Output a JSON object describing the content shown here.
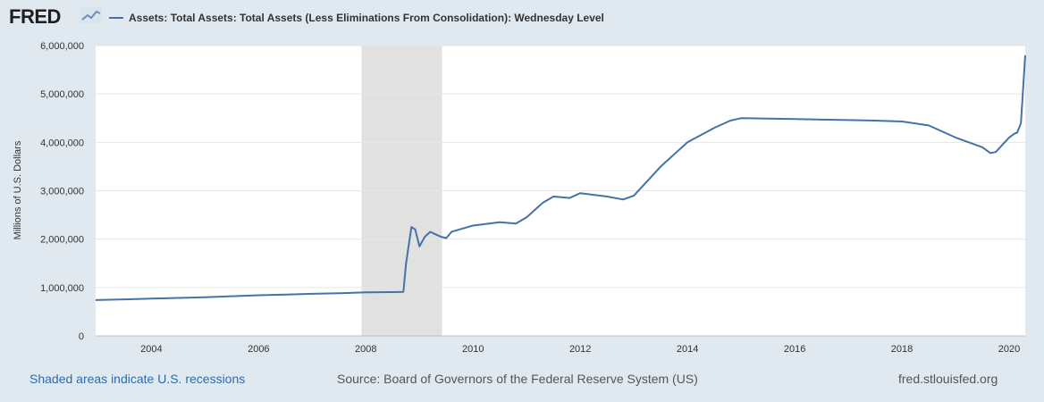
{
  "header": {
    "logo_text": "FRED",
    "series_title": "Assets: Total Assets: Total Assets (Less Eliminations From Consolidation): Wednesday Level",
    "series_color": "#4572a7"
  },
  "footer": {
    "recession_note": "Shaded areas indicate U.S. recessions",
    "source": "Source: Board of Governors of the Federal Reserve System (US)",
    "site": "fred.stlouisfed.org"
  },
  "chart_data": {
    "type": "line",
    "title": "Assets: Total Assets: Total Assets (Less Eliminations From Consolidation): Wednesday Level",
    "xlabel": "",
    "ylabel": "Millions of U.S. Dollars",
    "xlim": [
      2002.96,
      2020.3
    ],
    "ylim": [
      0,
      6000000
    ],
    "yticks": [
      0,
      1000000,
      2000000,
      3000000,
      4000000,
      5000000,
      6000000
    ],
    "ytick_labels": [
      "0",
      "1,000,000",
      "2,000,000",
      "3,000,000",
      "4,000,000",
      "5,000,000",
      "6,000,000"
    ],
    "xticks": [
      2004,
      2006,
      2008,
      2010,
      2012,
      2014,
      2016,
      2018,
      2020
    ],
    "xtick_labels": [
      "2004",
      "2006",
      "2008",
      "2010",
      "2012",
      "2014",
      "2016",
      "2018",
      "2020"
    ],
    "grid": true,
    "recessions": [
      [
        2007.92,
        2009.42
      ]
    ],
    "series": [
      {
        "name": "Assets: Total Assets: Total Assets (Less Eliminations From Consolidation): Wednesday Level",
        "color": "#4572a7",
        "x": [
          2002.96,
          2003.5,
          2004.0,
          2004.5,
          2005.0,
          2005.5,
          2006.0,
          2006.5,
          2007.0,
          2007.5,
          2008.0,
          2008.5,
          2008.7,
          2008.75,
          2008.85,
          2008.92,
          2009.0,
          2009.1,
          2009.2,
          2009.3,
          2009.4,
          2009.5,
          2009.6,
          2009.75,
          2010.0,
          2010.5,
          2010.8,
          2011.0,
          2011.3,
          2011.5,
          2011.8,
          2012.0,
          2012.5,
          2012.8,
          2013.0,
          2013.5,
          2014.0,
          2014.5,
          2014.8,
          2015.0,
          2015.5,
          2016.0,
          2016.5,
          2017.0,
          2017.5,
          2018.0,
          2018.5,
          2019.0,
          2019.5,
          2019.65,
          2019.75,
          2020.0,
          2020.1,
          2020.15,
          2020.22,
          2020.3
        ],
        "values": [
          740000,
          755000,
          770000,
          785000,
          800000,
          820000,
          840000,
          855000,
          870000,
          880000,
          900000,
          905000,
          910000,
          1500000,
          2250000,
          2200000,
          1850000,
          2050000,
          2150000,
          2100000,
          2050000,
          2020000,
          2150000,
          2200000,
          2280000,
          2350000,
          2320000,
          2450000,
          2750000,
          2880000,
          2850000,
          2950000,
          2880000,
          2820000,
          2900000,
          3500000,
          4000000,
          4300000,
          4450000,
          4500000,
          4490000,
          4480000,
          4470000,
          4460000,
          4450000,
          4430000,
          4350000,
          4100000,
          3900000,
          3780000,
          3800000,
          4100000,
          4180000,
          4200000,
          4400000,
          5800000
        ]
      }
    ]
  }
}
